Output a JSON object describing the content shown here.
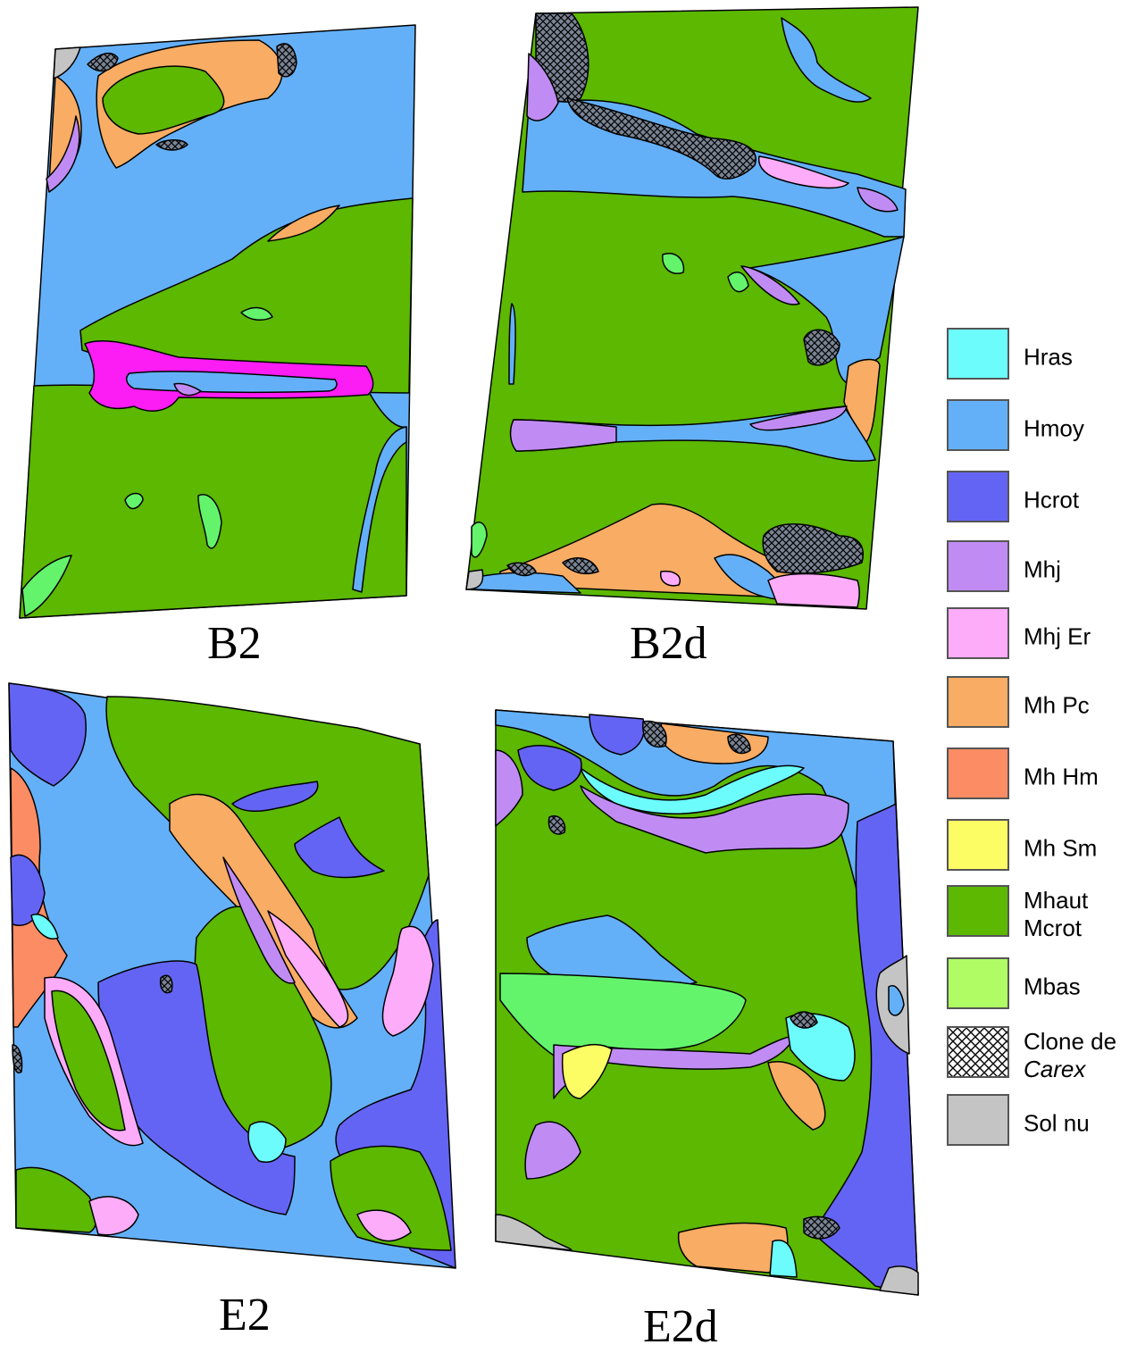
{
  "plots": [
    {
      "id": "B2",
      "label": "B2"
    },
    {
      "id": "B2d",
      "label": "B2d"
    },
    {
      "id": "E2",
      "label": "E2"
    },
    {
      "id": "E2d",
      "label": "E2d"
    }
  ],
  "legend": {
    "items": [
      {
        "label": "Hras",
        "color": "#6cfcfc"
      },
      {
        "label": "Hmoy",
        "color": "#64b0f8"
      },
      {
        "label": "Hcrot",
        "color": "#6464f4"
      },
      {
        "label": "Mhj",
        "color": "#c08cf4"
      },
      {
        "label": "Mhj Er",
        "color": "#fcacf8"
      },
      {
        "label": "Mh Pc",
        "color": "#f8ac64"
      },
      {
        "label": "Mh Hm",
        "color": "#fc8c64"
      },
      {
        "label": "Mh Sm",
        "color": "#fcfc64"
      },
      {
        "label": "Mhaut",
        "label2": "Mcrot",
        "color": "#5cb800"
      },
      {
        "label": "Mbas",
        "color": "#b0fc64"
      },
      {
        "label": "Clone de",
        "label2": "Carex",
        "label2_italic": true,
        "color": "hatch"
      },
      {
        "label": "Sol nu",
        "color": "#c4c4c4"
      }
    ]
  },
  "colors": {
    "hmoy": "#64b0f8",
    "mhaut": "#5cb800",
    "mbas": "#64f46c",
    "hcrot": "#6464f4",
    "mhj": "#c08cf4",
    "mhjer": "#fcacf8",
    "mhpc": "#f8ac64",
    "mhhm": "#fc8c64",
    "mhsm": "#fcfc64",
    "hras": "#6cfcfc",
    "magenta": "#fc1cf4",
    "solnu": "#c4c4c4"
  }
}
